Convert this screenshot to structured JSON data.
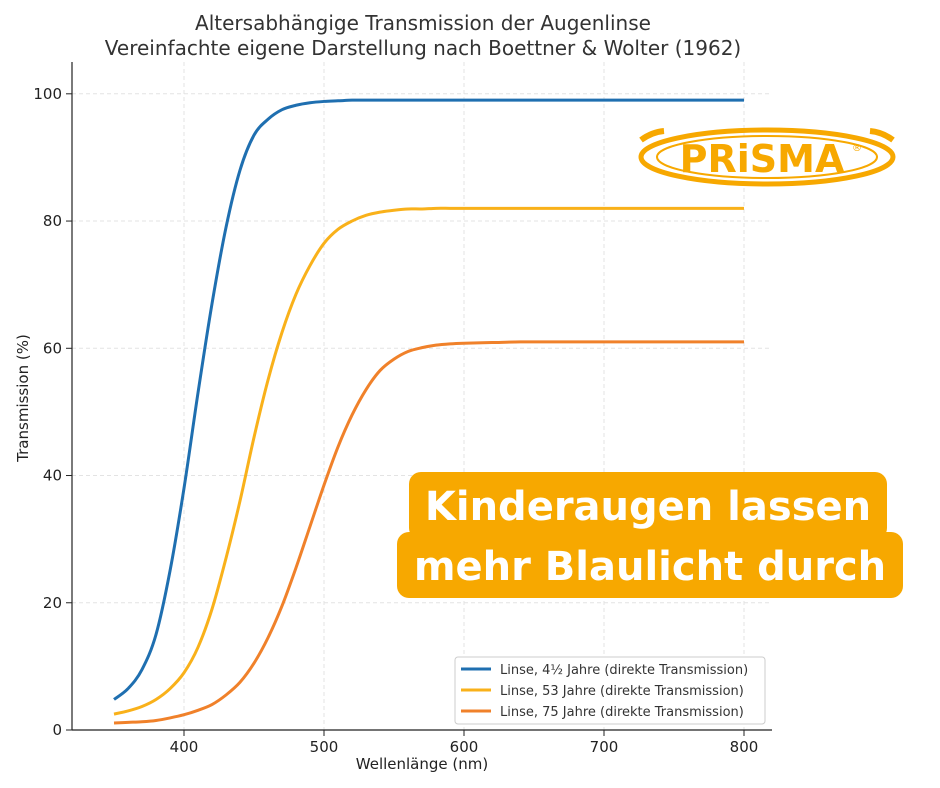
{
  "chart_data": {
    "type": "line",
    "title": "Altersabhängige Transmission der Augenlinse",
    "subtitle": "Vereinfachte eigene Darstellung nach Boettner & Wolter (1962)",
    "xlabel": "Wellenlänge (nm)",
    "ylabel": "Transmission (%)",
    "xlim": [
      320,
      820
    ],
    "ylim": [
      0,
      105
    ],
    "x_ticks": [
      400,
      500,
      600,
      700,
      800
    ],
    "y_ticks": [
      0,
      20,
      40,
      60,
      80,
      100
    ],
    "grid": true,
    "legend_position": "lower right",
    "x": [
      350,
      360,
      370,
      380,
      390,
      400,
      410,
      420,
      430,
      440,
      450,
      460,
      470,
      480,
      490,
      500,
      510,
      520,
      530,
      540,
      550,
      560,
      570,
      580,
      590,
      600,
      620,
      640,
      660,
      680,
      700,
      720,
      740,
      760,
      780,
      800
    ],
    "series": [
      {
        "name": "Linse, 4½ Jahre (direkte Transmission)",
        "color": "#1f6fb0",
        "values": [
          4.8,
          6.5,
          9.5,
          15.0,
          25.0,
          38.0,
          53.0,
          67.0,
          79.0,
          88.0,
          93.5,
          96.0,
          97.5,
          98.2,
          98.6,
          98.8,
          98.9,
          99.0,
          99.0,
          99.0,
          99.0,
          99.0,
          99.0,
          99.0,
          99.0,
          99.0,
          99.0,
          99.0,
          99.0,
          99.0,
          99.0,
          99.0,
          99.0,
          99.0,
          99.0,
          99.0
        ]
      },
      {
        "name": "Linse, 53 Jahre (direkte Transmission)",
        "color": "#f9b11a",
        "values": [
          2.5,
          3.0,
          3.7,
          4.8,
          6.5,
          9.0,
          13.0,
          19.0,
          27.0,
          36.0,
          46.0,
          55.0,
          62.5,
          68.5,
          73.0,
          76.5,
          78.7,
          80.0,
          80.9,
          81.4,
          81.7,
          81.9,
          81.9,
          82.0,
          82.0,
          82.0,
          82.0,
          82.0,
          82.0,
          82.0,
          82.0,
          82.0,
          82.0,
          82.0,
          82.0,
          82.0
        ]
      },
      {
        "name": "Linse, 75 Jahre (direkte Transmission)",
        "color": "#f0812a",
        "values": [
          1.1,
          1.2,
          1.3,
          1.5,
          1.9,
          2.4,
          3.1,
          4.0,
          5.5,
          7.5,
          10.5,
          14.5,
          19.5,
          25.5,
          32.0,
          38.5,
          44.5,
          49.5,
          53.5,
          56.5,
          58.3,
          59.5,
          60.1,
          60.5,
          60.7,
          60.8,
          60.9,
          61.0,
          61.0,
          61.0,
          61.0,
          61.0,
          61.0,
          61.0,
          61.0,
          61.0
        ]
      }
    ]
  },
  "callout": {
    "line1": "Kinderaugen lassen",
    "line2": "mehr Blaulicht durch",
    "color": "#f7a800"
  },
  "logo": {
    "text": "PRiSMA",
    "registered": "®",
    "color": "#f7a800"
  }
}
